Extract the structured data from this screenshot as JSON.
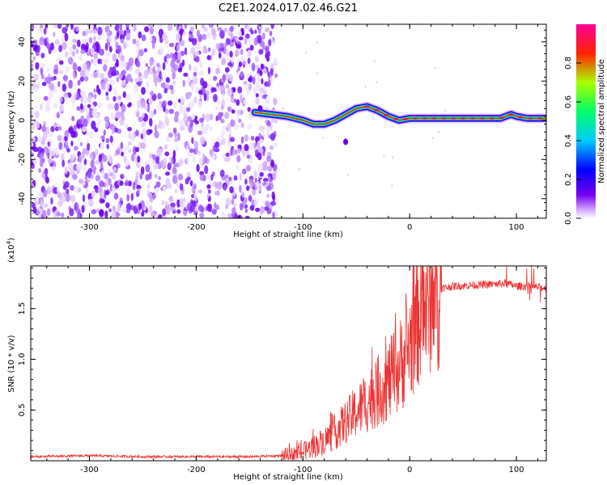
{
  "title": "C2E1.2024.017.02.46.G21",
  "chart_data": [
    {
      "type": "heatmap",
      "xlabel": "Height of straight line (km)",
      "ylabel": "Frequency (Hz)",
      "xlim": [
        -355,
        128
      ],
      "ylim": [
        -50,
        49
      ],
      "x_ticks": [
        -300,
        -200,
        -100,
        0,
        100
      ],
      "x_tick_labels": [
        "-300",
        "-200",
        "-100",
        "0",
        "100"
      ],
      "y_ticks": [
        -40,
        -20,
        0,
        20,
        40
      ],
      "y_tick_labels": [
        "-40",
        "-20",
        "0",
        "20",
        "40"
      ],
      "noise_region_x": [
        -355,
        -125
      ],
      "trace": {
        "name": "frequency trace",
        "x": [
          -145,
          -130,
          -115,
          -100,
          -90,
          -80,
          -70,
          -60,
          -50,
          -40,
          -30,
          -20,
          -10,
          0,
          10,
          30,
          50,
          70,
          85,
          95,
          100,
          110,
          128
        ],
        "y": [
          4,
          3,
          2,
          0,
          -2,
          -2,
          0,
          3,
          6,
          7,
          5,
          2,
          0,
          1,
          1,
          1,
          1,
          1,
          1,
          3,
          2,
          1,
          1
        ]
      },
      "isolated_blobs": [
        {
          "x": -60,
          "y": -11
        },
        {
          "x": -140,
          "y": 6
        }
      ],
      "grid": false
    },
    {
      "type": "line",
      "xlabel": "Height of straight line (km)",
      "ylabel": "SNR (10 * v/v)",
      "multiplier_label": "(x10",
      "multiplier_exp": "4",
      "multiplier_close": ")",
      "xlim": [
        -355,
        128
      ],
      "ylim": [
        0,
        1.92
      ],
      "x_ticks": [
        -300,
        -200,
        -100,
        0,
        100
      ],
      "x_tick_labels": [
        "-300",
        "-200",
        "-100",
        "0",
        "100"
      ],
      "y_ticks": [
        0.5,
        1.0,
        1.5
      ],
      "y_tick_labels": [
        "0.5",
        "1.0",
        "1.5"
      ],
      "series": [
        {
          "color": "#ee3333",
          "x": [
            -355,
            -300,
            -250,
            -200,
            -150,
            -120,
            -110,
            -100,
            -90,
            -80,
            -70,
            -60,
            -50,
            -40,
            -30,
            -20,
            -10,
            0,
            10,
            20,
            30,
            40,
            60,
            80,
            90,
            100,
            110,
            120,
            128
          ],
          "y": [
            0.04,
            0.05,
            0.04,
            0.04,
            0.04,
            0.05,
            0.06,
            0.09,
            0.14,
            0.2,
            0.28,
            0.38,
            0.48,
            0.58,
            0.68,
            0.78,
            0.92,
            1.15,
            1.45,
            1.62,
            1.7,
            1.72,
            1.73,
            1.74,
            1.75,
            1.72,
            1.72,
            1.71,
            1.7
          ]
        }
      ],
      "grid": false
    }
  ],
  "colorbar": {
    "label": "Normalized spectral amplitude",
    "ticks": [
      0.0,
      0.2,
      0.4,
      0.6,
      0.8
    ],
    "tick_labels": [
      "0.0",
      "0.2",
      "0.4",
      "0.6",
      "0.8"
    ],
    "range": [
      0,
      1
    ],
    "colors": [
      "#ffffff",
      "#cc99ff",
      "#7700ee",
      "#0000ff",
      "#00ccff",
      "#00ff66",
      "#aaff00",
      "#ff2200",
      "#ff0099"
    ]
  }
}
